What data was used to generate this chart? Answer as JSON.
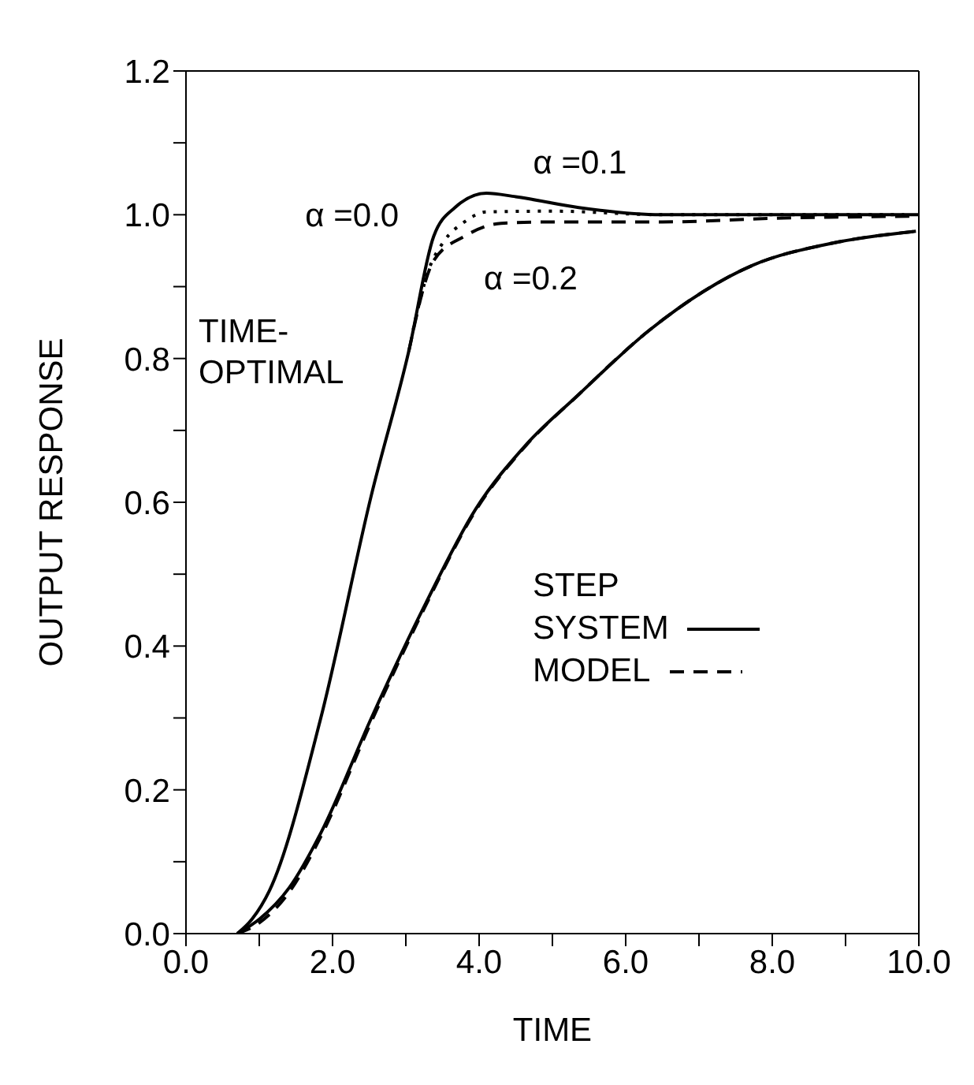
{
  "chart_data": {
    "type": "line",
    "xlabel": "TIME",
    "ylabel": "OUTPUT RESPONSE",
    "legend_title": "STEP",
    "legend": "center",
    "grid": false,
    "marker": "none",
    "xlim": [
      0,
      10
    ],
    "ylim": [
      0,
      1.2
    ],
    "xticks": [
      {
        "value": 0,
        "label": "0.0"
      },
      {
        "value": 1,
        "label": null
      },
      {
        "value": 2,
        "label": "2.0"
      },
      {
        "value": 3,
        "label": null
      },
      {
        "value": 4,
        "label": "4.0"
      },
      {
        "value": 5,
        "label": null
      },
      {
        "value": 6,
        "label": "6.0"
      },
      {
        "value": 7,
        "label": null
      },
      {
        "value": 8,
        "label": "8.0"
      },
      {
        "value": 9,
        "label": null
      },
      {
        "value": 10,
        "label": "10.0"
      }
    ],
    "yticks": [
      {
        "value": 0,
        "label": "0.0"
      },
      {
        "value": 0.1,
        "label": null
      },
      {
        "value": 0.2,
        "label": "0.2"
      },
      {
        "value": 0.3,
        "label": null
      },
      {
        "value": 0.4,
        "label": "0.4"
      },
      {
        "value": 0.5,
        "label": null
      },
      {
        "value": 0.6,
        "label": "0.6"
      },
      {
        "value": 0.7,
        "label": null
      },
      {
        "value": 0.8,
        "label": "0.8"
      },
      {
        "value": 0.9,
        "label": null
      },
      {
        "value": 1,
        "label": "1.0"
      },
      {
        "value": 1.1,
        "label": null
      },
      {
        "value": 1.2,
        "label": "1.2"
      }
    ],
    "series": [
      {
        "name": "SYSTEM",
        "color": "#000000",
        "line_style": "solid",
        "x": [
          0.7,
          1.0,
          1.41,
          1.84,
          2.53,
          3.25,
          3.95,
          4.64,
          5.36,
          6.33,
          7.74,
          8.8,
          9.96
        ],
        "values": [
          0,
          0.02,
          0.064,
          0.14,
          0.3,
          0.455,
          0.59,
          0.68,
          0.75,
          0.84,
          0.93,
          0.96,
          0.977
        ]
      },
      {
        "name": "MODEL",
        "color": "#000000",
        "line_style": "dashed",
        "x": [
          0.7,
          1.0,
          1.41,
          1.84,
          2.53,
          3.25,
          3.95,
          4.64,
          5.36,
          6.33,
          7.74,
          8.8,
          9.96
        ],
        "values": [
          0,
          0.015,
          0.058,
          0.135,
          0.295,
          0.452,
          0.588,
          0.679,
          0.75,
          0.84,
          0.93,
          0.96,
          0.977
        ]
      },
      {
        "color": "#000000",
        "line_style": "solid",
        "x": [
          0.7,
          0.9,
          1.14,
          1.84,
          2.53,
          3.04,
          3.38,
          3.67,
          4.1,
          4.5,
          5.36,
          6.48,
          8,
          10
        ],
        "values": [
          0,
          0.02,
          0.06,
          0.3,
          0.61,
          0.81,
          0.97,
          1.01,
          1.03,
          1.025,
          1.01,
          1.0,
          1.0,
          1.0
        ]
      },
      {
        "color": "#000000",
        "line_style": "dotted",
        "x": [
          3.1,
          3.3,
          3.52,
          3.8,
          4.1,
          5,
          6.5,
          8,
          9.8
        ],
        "values": [
          0.84,
          0.92,
          0.963,
          0.99,
          1.004,
          1.005,
          1.0,
          1.0,
          1.0
        ]
      },
      {
        "color": "#000000",
        "line_style": "dashed",
        "x": [
          3.04,
          3.38,
          3.8,
          4.3,
          5,
          6.5,
          8,
          10
        ],
        "values": [
          0.81,
          0.936,
          0.97,
          0.988,
          0.99,
          0.99,
          0.995,
          0.998
        ]
      }
    ],
    "annotations": [
      "TIME-\nOPTIMAL",
      {
        "text": "α =0.0",
        "x": 3.6,
        "y": 1.0
      },
      {
        "text": "α =0.1",
        "x": 4.3,
        "y": 1.004
      },
      {
        "text": "α =0.2",
        "x": 3.8,
        "y": 0.97
      }
    ]
  }
}
